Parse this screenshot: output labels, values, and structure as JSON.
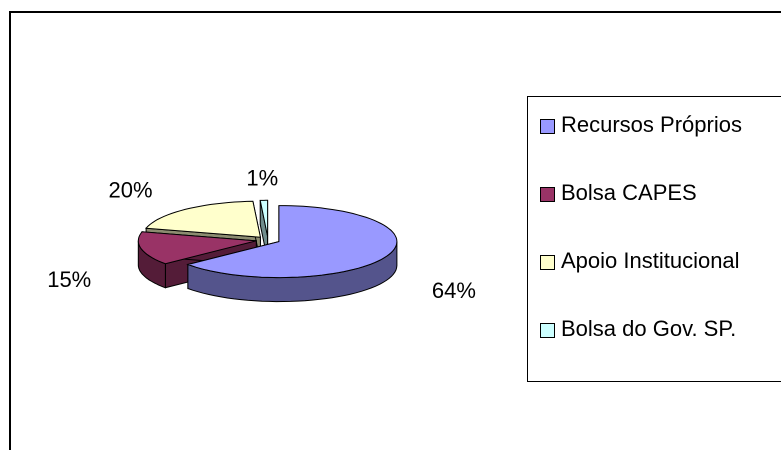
{
  "chart_data": {
    "type": "pie",
    "categories": [
      "Recursos Próprios",
      "Bolsa CAPES",
      "Apoio Institucional",
      "Bolsa do Gov. SP."
    ],
    "values": [
      64,
      15,
      20,
      1
    ],
    "value_labels": [
      "64%",
      "15%",
      "20%",
      "1%"
    ],
    "colors": [
      "#9999ff",
      "#993366",
      "#ffffcc",
      "#ccffff"
    ],
    "legend": "right"
  }
}
